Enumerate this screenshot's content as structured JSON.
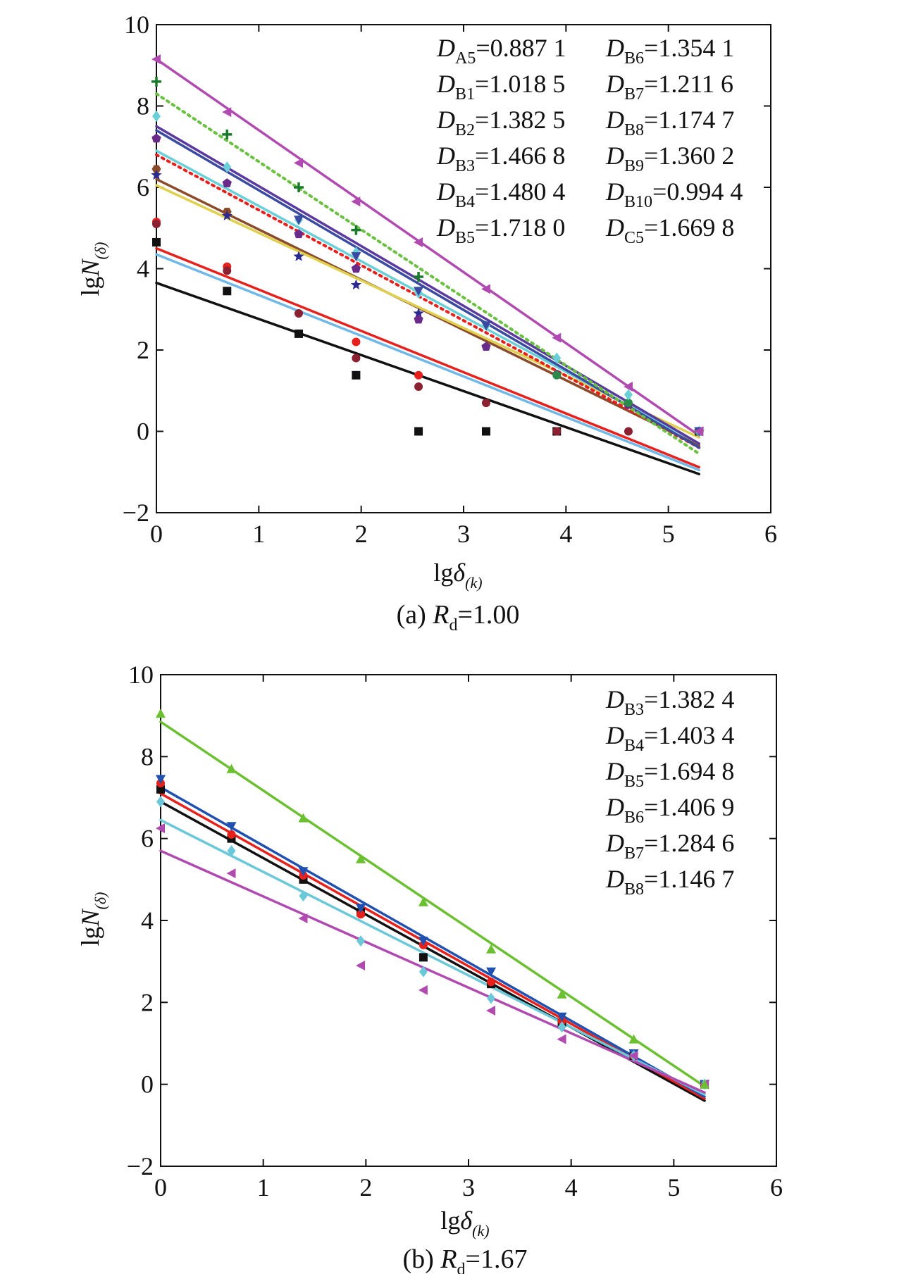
{
  "chart_data": [
    {
      "type": "scatter",
      "caption": {
        "prefix": "(a) ",
        "var": "R",
        "sub": "d",
        "value": "=1.00"
      },
      "xlabel": {
        "base": "lg",
        "greek": "δ",
        "sub": "(k)"
      },
      "ylabel": {
        "base": "lg",
        "var": "N",
        "sub": "(δ)"
      },
      "xlim": [
        0,
        6
      ],
      "ylim": [
        -2,
        10
      ],
      "xticks": [
        0,
        1,
        2,
        3,
        4,
        5,
        6
      ],
      "yticks": [
        -2,
        0,
        2,
        4,
        6,
        8,
        10
      ],
      "xtick_labels": [
        "0",
        "1",
        "2",
        "3",
        "4",
        "5",
        "6"
      ],
      "ytick_labels": [
        "−2",
        "0",
        "2",
        "4",
        "6",
        "8",
        "10"
      ],
      "grid": false,
      "x": [
        0,
        0.69,
        1.39,
        1.95,
        2.56,
        3.22,
        3.91,
        4.61,
        5.3
      ],
      "annotations": [
        {
          "var": "D",
          "sub": "A5",
          "value": "=0.887 1"
        },
        {
          "var": "D",
          "sub": "B1",
          "value": "=1.018 5"
        },
        {
          "var": "D",
          "sub": "B2",
          "value": "=1.382 5"
        },
        {
          "var": "D",
          "sub": "B3",
          "value": "=1.466 8"
        },
        {
          "var": "D",
          "sub": "B4",
          "value": "=1.480 4"
        },
        {
          "var": "D",
          "sub": "B5",
          "value": "=1.718 0"
        },
        {
          "var": "D",
          "sub": "B6",
          "value": "=1.354 1"
        },
        {
          "var": "D",
          "sub": "B7",
          "value": "=1.211 6"
        },
        {
          "var": "D",
          "sub": "B8",
          "value": "=1.174 7"
        },
        {
          "var": "D",
          "sub": "B9",
          "value": "=1.360 2"
        },
        {
          "var": "D",
          "sub": "B10",
          "value": "=0.994 4"
        },
        {
          "var": "D",
          "sub": "C5",
          "value": "=1.669 8"
        }
      ],
      "series": [
        {
          "color": "#111111",
          "marker": "square",
          "fit": [
            3.65,
            -1.05
          ],
          "values": [
            4.65,
            3.45,
            2.4,
            1.38,
            0,
            0,
            0,
            null,
            0
          ]
        },
        {
          "color": "#e8201c",
          "marker": "circle",
          "fit": [
            4.5,
            -0.88
          ],
          "values": [
            5.15,
            4.05,
            null,
            2.2,
            1.38,
            null,
            null,
            null,
            0
          ]
        },
        {
          "color": "#6fb8e8",
          "marker": "circle",
          "fit": [
            4.35,
            -0.95
          ],
          "values": [
            null,
            null,
            null,
            null,
            null,
            null,
            null,
            null,
            0
          ]
        },
        {
          "color": "#8b2030",
          "marker": "circle",
          "fit": null,
          "values": [
            5.1,
            3.95,
            2.9,
            1.8,
            1.1,
            0.7,
            0,
            0,
            0
          ]
        },
        {
          "color": "#8b4a2a",
          "marker": "hexagon",
          "fit": [
            6.2,
            -0.35
          ],
          "values": [
            6.45,
            5.4,
            null,
            null,
            null,
            null,
            null,
            null,
            0
          ]
        },
        {
          "color": "#e0d050",
          "marker": "none",
          "fit": [
            6.05,
            -0.15
          ],
          "values": [
            null,
            null,
            null,
            null,
            null,
            null,
            null,
            null,
            null
          ]
        },
        {
          "color": "#e8201c",
          "marker": "none",
          "dotted": true,
          "fit": [
            6.8,
            -0.4
          ],
          "values": [
            null,
            null,
            null,
            null,
            null,
            null,
            null,
            null,
            null
          ]
        },
        {
          "color": "#2a2a90",
          "marker": "star",
          "fit": null,
          "values": [
            6.3,
            5.3,
            4.3,
            3.6,
            2.9,
            null,
            null,
            null,
            0
          ]
        },
        {
          "color": "#6a2a8a",
          "marker": "pentagon",
          "fit": null,
          "values": [
            7.2,
            6.1,
            4.85,
            4.0,
            2.75,
            2.08,
            1.4,
            0.65,
            0
          ]
        },
        {
          "color": "#2a8a4a",
          "marker": "circle",
          "fit": null,
          "values": [
            null,
            null,
            null,
            null,
            null,
            null,
            1.38,
            0.7,
            0
          ]
        },
        {
          "color": "#6ad0d8",
          "marker": "diamond",
          "fit": [
            6.9,
            -0.3
          ],
          "values": [
            7.75,
            6.5,
            5.2,
            4.4,
            3.4,
            2.6,
            1.8,
            0.9,
            0
          ]
        },
        {
          "color": "#3a4aa0",
          "marker": "tri-down",
          "fit": [
            7.4,
            -0.4
          ],
          "values": [
            null,
            null,
            5.2,
            4.3,
            3.45,
            2.6,
            null,
            null,
            0
          ]
        },
        {
          "color": "#5a3aa0",
          "marker": "none",
          "fit": [
            7.5,
            -0.3
          ],
          "values": [
            null,
            null,
            null,
            null,
            null,
            null,
            null,
            null,
            null
          ]
        },
        {
          "color": "#1a7a2a",
          "marker": "plus",
          "fit": null,
          "values": [
            8.6,
            7.3,
            6.0,
            4.95,
            3.8,
            null,
            null,
            null,
            null
          ]
        },
        {
          "color": "#6ac040",
          "marker": "none",
          "dotted": true,
          "fit": [
            8.3,
            -0.55
          ],
          "values": [
            null,
            null,
            null,
            null,
            null,
            null,
            null,
            null,
            null
          ]
        },
        {
          "color": "#b04ab0",
          "marker": "tri-left",
          "fit": [
            9.15,
            -0.1
          ],
          "values": [
            9.15,
            7.85,
            6.6,
            5.65,
            4.65,
            3.5,
            2.3,
            1.1,
            0
          ]
        }
      ]
    },
    {
      "type": "scatter",
      "caption": {
        "prefix": "(b) ",
        "var": "R",
        "sub": "d",
        "value": "=1.67"
      },
      "xlabel": {
        "base": "lg",
        "greek": "δ",
        "sub": "(k)"
      },
      "ylabel": {
        "base": "lg",
        "var": "N",
        "sub": "(δ)"
      },
      "xlim": [
        0,
        6
      ],
      "ylim": [
        -2,
        10
      ],
      "xticks": [
        0,
        1,
        2,
        3,
        4,
        5,
        6
      ],
      "yticks": [
        -2,
        0,
        2,
        4,
        6,
        8,
        10
      ],
      "xtick_labels": [
        "0",
        "1",
        "2",
        "3",
        "4",
        "5",
        "6"
      ],
      "ytick_labels": [
        "−2",
        "0",
        "2",
        "4",
        "6",
        "8",
        "10"
      ],
      "grid": false,
      "x": [
        0,
        0.69,
        1.39,
        1.95,
        2.56,
        3.22,
        3.91,
        4.61,
        5.3
      ],
      "annotations": [
        {
          "var": "D",
          "sub": "B3",
          "value": "=1.382 4"
        },
        {
          "var": "D",
          "sub": "B4",
          "value": "=1.403 4"
        },
        {
          "var": "D",
          "sub": "B5",
          "value": "=1.694 8"
        },
        {
          "var": "D",
          "sub": "B6",
          "value": "=1.406 9"
        },
        {
          "var": "D",
          "sub": "B7",
          "value": "=1.284 6"
        },
        {
          "var": "D",
          "sub": "B8",
          "value": "=1.146 7"
        }
      ],
      "series": [
        {
          "color": "#111111",
          "marker": "square",
          "fit": [
            6.9,
            -0.4
          ],
          "values": [
            7.2,
            6.0,
            5.0,
            4.2,
            3.1,
            2.45,
            1.5,
            0.7,
            0
          ]
        },
        {
          "color": "#e8201c",
          "marker": "circle",
          "fit": [
            7.1,
            -0.35
          ],
          "values": [
            7.35,
            6.1,
            5.1,
            4.15,
            3.4,
            2.5,
            1.55,
            0.7,
            0
          ]
        },
        {
          "color": "#2050b0",
          "marker": "tri-down",
          "fit": [
            7.25,
            -0.3
          ],
          "values": [
            7.45,
            6.3,
            5.2,
            4.3,
            3.5,
            2.75,
            1.65,
            0.75,
            0
          ]
        },
        {
          "color": "#6ac8d8",
          "marker": "diamond",
          "fit": [
            6.45,
            -0.25
          ],
          "values": [
            6.9,
            5.7,
            4.6,
            3.5,
            2.75,
            2.1,
            1.4,
            0.7,
            0
          ]
        },
        {
          "color": "#b04ab0",
          "marker": "tri-left",
          "fit": [
            5.7,
            -0.2
          ],
          "values": [
            6.25,
            5.15,
            4.05,
            2.9,
            2.3,
            1.8,
            1.1,
            0.7,
            0
          ]
        },
        {
          "color": "#6ac030",
          "marker": "tri-up",
          "fit": [
            8.85,
            -0.05
          ],
          "values": [
            9.05,
            7.7,
            6.5,
            5.5,
            4.45,
            3.3,
            2.2,
            1.1,
            0
          ]
        }
      ]
    }
  ]
}
